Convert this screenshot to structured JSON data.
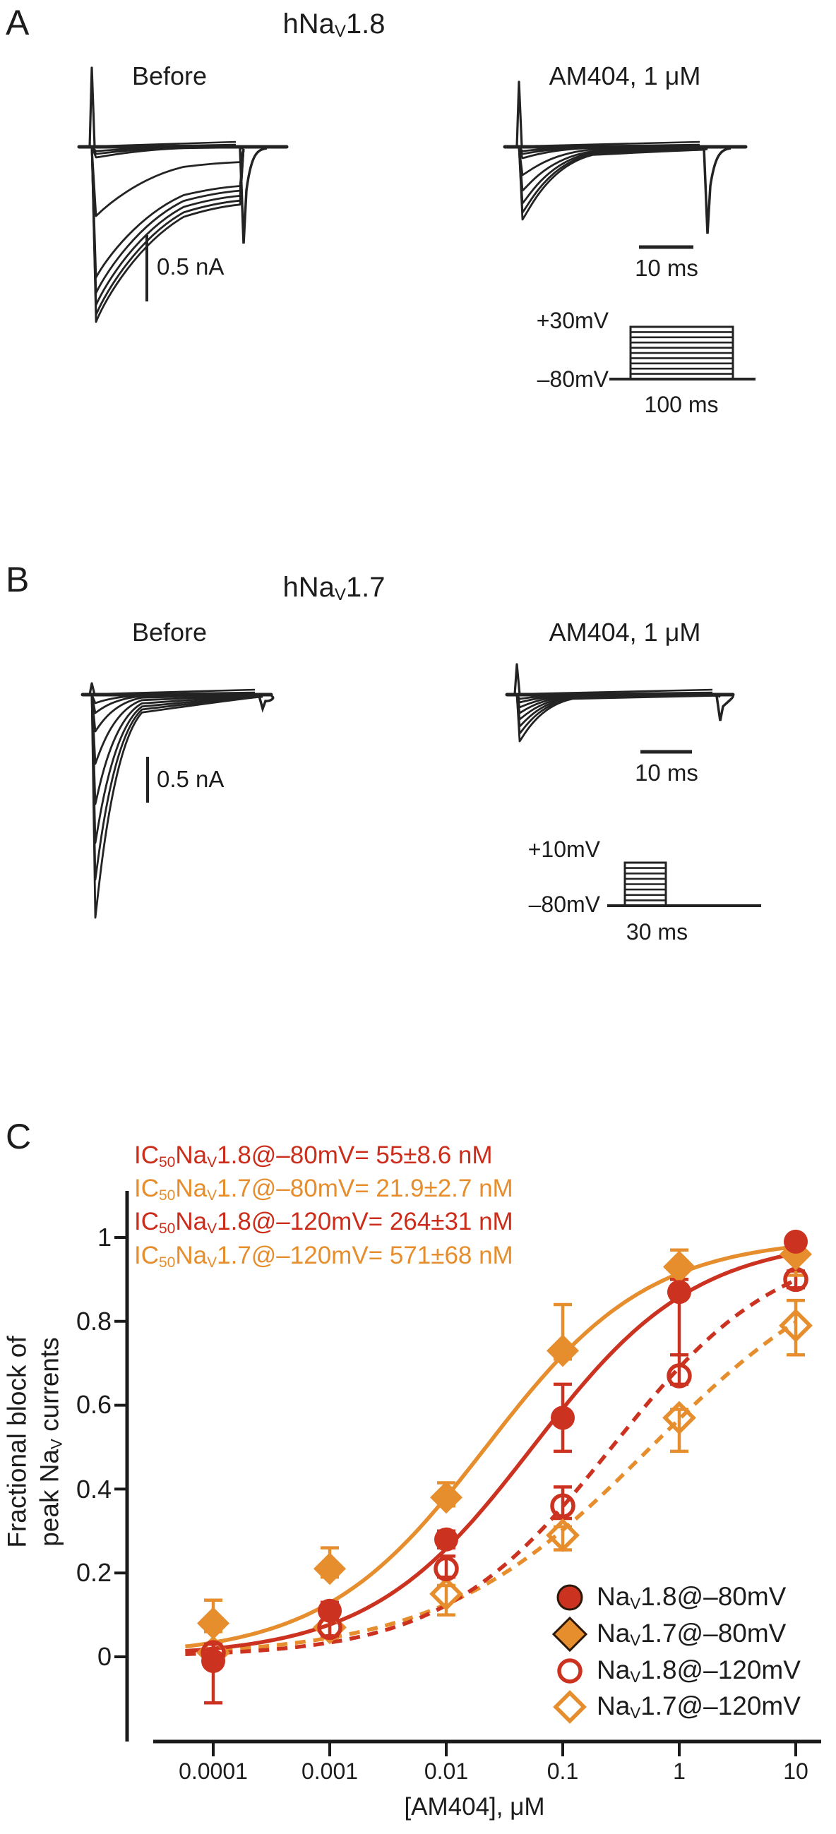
{
  "colors": {
    "ink": "#232323",
    "red": "#cc3220",
    "orange": "#e68e2d"
  },
  "panels": {
    "a": {
      "label": "A",
      "title": {
        "pre": "hNa",
        "sub": "V",
        "post": "1.8"
      },
      "left_heading": "Before",
      "right_heading": "AM404, 1 μM",
      "current_scale": "0.5 nA",
      "time_scale": "10 ms",
      "protocol": {
        "top_voltage": "+30mV",
        "holding_voltage": "–80mV",
        "duration": "100 ms"
      }
    },
    "b": {
      "label": "B",
      "title": {
        "pre": "hNa",
        "sub": "V",
        "post": "1.7"
      },
      "left_heading": "Before",
      "right_heading": "AM404, 1 μM",
      "current_scale": "0.5 nA",
      "time_scale": "10 ms",
      "protocol": {
        "top_voltage": "+10mV",
        "holding_voltage": "–80mV",
        "duration": "30 ms"
      }
    },
    "c": {
      "label": "C",
      "ic50": [
        {
          "ic": "IC",
          "ic_sub": "50",
          "na": "Na",
          "na_sub": "V",
          "rest": "1.8@–80mV= 55±8.6 nM",
          "color": "#cc2d1b"
        },
        {
          "ic": "IC",
          "ic_sub": "50",
          "na": "Na",
          "na_sub": "V",
          "rest": "1.7@–80mV= 21.9±2.7 nM",
          "color": "#e68e2d"
        },
        {
          "ic": "IC",
          "ic_sub": "50",
          "na": "Na",
          "na_sub": "V",
          "rest": "1.8@–120mV= 264±31 nM",
          "color": "#cc2d1b"
        },
        {
          "ic": "IC",
          "ic_sub": "50",
          "na": "Na",
          "na_sub": "V",
          "rest": "1.7@–120mV= 571±68 nM",
          "color": "#e68e2d"
        }
      ]
    }
  },
  "chart_data": {
    "type": "scatter",
    "x_scale": "log",
    "x": [
      0.0001,
      0.001,
      0.01,
      0.1,
      1,
      10
    ],
    "xticks": [
      "0.0001",
      "0.001",
      "0.01",
      "0.1",
      "1",
      "10"
    ],
    "yticks": [
      "1",
      "0.8",
      "0.6",
      "0.4",
      "0.2",
      "0"
    ],
    "ytick_values": [
      1,
      0.8,
      0.6,
      0.4,
      0.2,
      0
    ],
    "ylim": [
      -0.2,
      1.1
    ],
    "xlabel": "[AM404], μM",
    "ylabel_line1": "Fractional block of",
    "ylabel_line2": {
      "pre": "peak Na",
      "sub": "V",
      "post": " currents"
    },
    "grid": false,
    "legend_position": "lower right",
    "series": [
      {
        "name": "NaV1.8@–80mV",
        "label_pre": "Na",
        "label_sub": "V",
        "label_rest": "1.8@–80mV",
        "marker": "circle",
        "fill": "filled",
        "line": "solid",
        "color": "#cc3220",
        "ic50_nM": 55,
        "values": [
          -0.01,
          0.11,
          0.28,
          0.57,
          0.87,
          0.99
        ],
        "err_lo": [
          0.1,
          0.02,
          0.02,
          0.08,
          0.15,
          0.01
        ],
        "err_hi": [
          0.1,
          0.02,
          0.02,
          0.08,
          0.03,
          0.01
        ]
      },
      {
        "name": "NaV1.7@–80mV",
        "label_pre": "Na",
        "label_sub": "V",
        "label_rest": "1.7@–80mV",
        "marker": "diamond",
        "fill": "filled",
        "line": "solid",
        "color": "#e68e2d",
        "ic50_nM": 21.9,
        "values": [
          0.08,
          0.21,
          0.38,
          0.73,
          0.93,
          0.96
        ],
        "err_lo": [
          0.02,
          0.02,
          0.02,
          0.02,
          0.03,
          0.05
        ],
        "err_hi": [
          0.055,
          0.05,
          0.035,
          0.11,
          0.04,
          0.02
        ]
      },
      {
        "name": "NaV1.8@–120mV",
        "label_pre": "Na",
        "label_sub": "V",
        "label_rest": "1.8@–120mV",
        "marker": "circle",
        "fill": "open",
        "line": "dashed",
        "color": "#cc3220",
        "ic50_nM": 264,
        "values": [
          0.01,
          0.07,
          0.21,
          0.36,
          0.67,
          0.9
        ],
        "err_lo": [
          0.02,
          0.02,
          0.02,
          0.03,
          0.02,
          0.02
        ],
        "err_hi": [
          0.02,
          0.02,
          0.03,
          0.045,
          0.05,
          0.02
        ]
      },
      {
        "name": "NaV1.7@–120mV",
        "label_pre": "Na",
        "label_sub": "V",
        "label_rest": "1.7@–120mV",
        "marker": "diamond",
        "fill": "open",
        "line": "dashed",
        "color": "#e68e2d",
        "ic50_nM": 571,
        "values": [
          0.01,
          0.07,
          0.15,
          0.29,
          0.57,
          0.79
        ],
        "err_lo": [
          0.02,
          0.025,
          0.05,
          0.035,
          0.08,
          0.07
        ],
        "err_hi": [
          0.02,
          0.02,
          0.02,
          0.02,
          0.02,
          0.06
        ]
      }
    ]
  }
}
